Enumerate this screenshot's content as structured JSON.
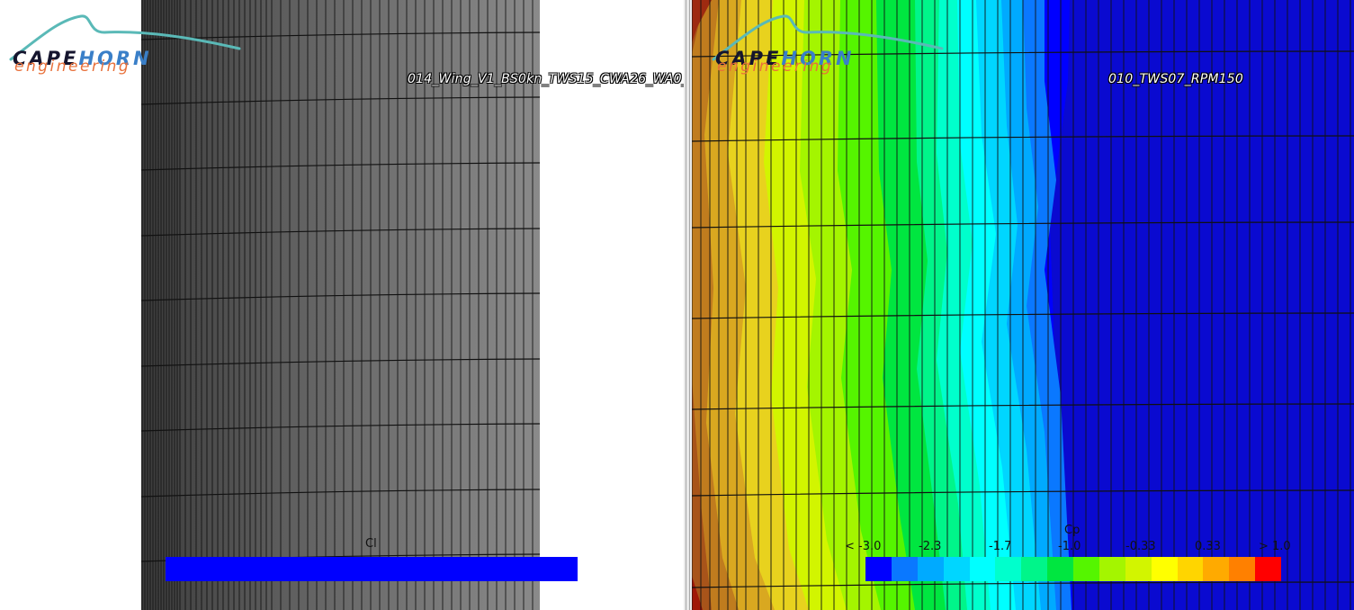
{
  "left_view": {
    "case_name": "014_Wing_V1_BS0kn_TWS15_CWA26_WA0_",
    "logo": {
      "brand_part1": "CAPE",
      "brand_part2": "HORN",
      "subtitle": "engineering"
    },
    "legend": {
      "title": "Cl",
      "color": "#0000ff"
    }
  },
  "right_view": {
    "case_name": "010_TWS07_RPM150",
    "logo": {
      "brand_part1": "CAPE",
      "brand_part2": "HORN",
      "subtitle": "engineering"
    },
    "legend": {
      "title": "Cp",
      "tick_labels": [
        "< -3.0",
        "-2.3",
        "-1.7",
        "-1.0",
        "-0.33",
        "0.33",
        "> 1.0"
      ],
      "colors": [
        "#0000ff",
        "#0a78ff",
        "#00aaff",
        "#00d6ff",
        "#00ffff",
        "#00ffcc",
        "#00f58a",
        "#00e640",
        "#55f500",
        "#a4f500",
        "#d2f500",
        "#ffff00",
        "#ffd500",
        "#ffaa00",
        "#ff8000",
        "#ff0000"
      ]
    }
  },
  "colors": {
    "brand_dark": "#15152e",
    "brand_blue": "#3a7fc8",
    "brand_orange": "#e8703a",
    "mesh_gray": "#787878",
    "background_blue": "#0a0ad0"
  }
}
